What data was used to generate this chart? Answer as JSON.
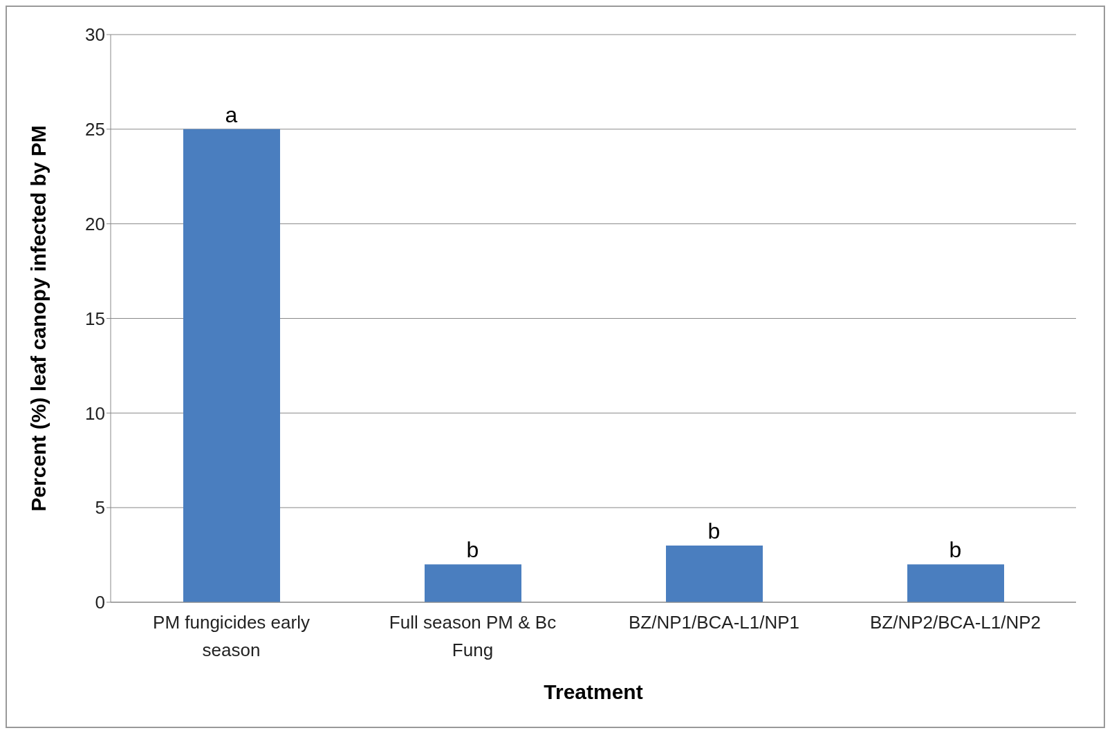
{
  "chart_data": {
    "type": "bar",
    "xlabel": "Treatment",
    "ylabel": "Percent (%) leaf canopy infected by PM",
    "categories": [
      "PM fungicides early season",
      "Full season PM & Bc Fung",
      "BZ/NP1/BCA-L1/NP1",
      "BZ/NP2/BCA-L1/NP2"
    ],
    "values": [
      25,
      2,
      3,
      2
    ],
    "color": "#4a7ebf",
    "ylim": [
      0,
      30
    ],
    "yticks": [
      0,
      5,
      10,
      15,
      20,
      25,
      30
    ],
    "grid": "y",
    "legend": false,
    "annotations": [
      {
        "text": "a",
        "x": "PM fungicides early season",
        "y": 25
      },
      {
        "text": "b",
        "x": "Full season PM & Bc Fung",
        "y": 2
      },
      {
        "text": "b",
        "x": "BZ/NP1/BCA-L1/NP1",
        "y": 3
      },
      {
        "text": "b",
        "x": "BZ/NP2/BCA-L1/NP2",
        "y": 2
      }
    ]
  }
}
